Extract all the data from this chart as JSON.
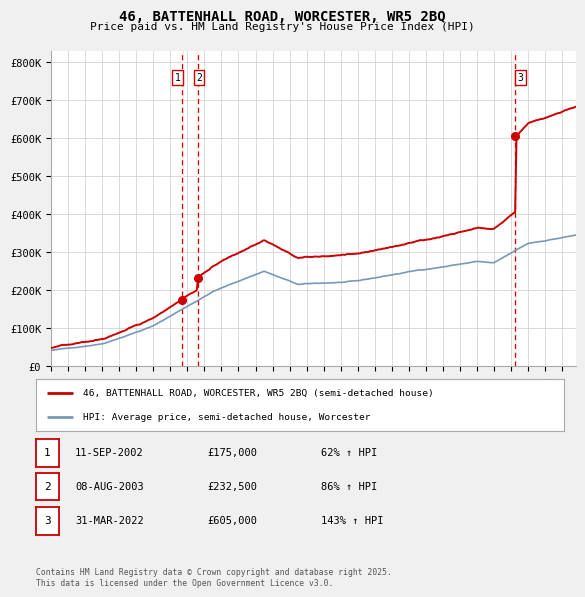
{
  "title": "46, BATTENHALL ROAD, WORCESTER, WR5 2BQ",
  "subtitle": "Price paid vs. HM Land Registry's House Price Index (HPI)",
  "background_color": "#f0f0f0",
  "plot_bg_color": "#ffffff",
  "ylabel_ticks": [
    "£0",
    "£100K",
    "£200K",
    "£300K",
    "£400K",
    "£500K",
    "£600K",
    "£700K",
    "£800K"
  ],
  "ytick_values": [
    0,
    100000,
    200000,
    300000,
    400000,
    500000,
    600000,
    700000,
    800000
  ],
  "ylim": [
    0,
    830000
  ],
  "xlim_start": 1995.0,
  "xlim_end": 2025.8,
  "transaction_year_floats": [
    2002.703,
    2003.603,
    2022.247
  ],
  "transaction_prices": [
    175000,
    232500,
    605000
  ],
  "transaction_labels": [
    "1",
    "2",
    "3"
  ],
  "purchase_vline_color": "#cc0000",
  "purchase_dot_color": "#cc0000",
  "hpi_line_color": "#7799bb",
  "price_line_color": "#cc0000",
  "vline_shade_color": "#ffeeee",
  "legend_price_label": "46, BATTENHALL ROAD, WORCESTER, WR5 2BQ (semi-detached house)",
  "legend_hpi_label": "HPI: Average price, semi-detached house, Worcester",
  "table_data": [
    [
      "1",
      "11-SEP-2002",
      "£175,000",
      "62% ↑ HPI"
    ],
    [
      "2",
      "08-AUG-2003",
      "£232,500",
      "86% ↑ HPI"
    ],
    [
      "3",
      "31-MAR-2022",
      "£605,000",
      "143% ↑ HPI"
    ]
  ],
  "footer": "Contains HM Land Registry data © Crown copyright and database right 2025.\nThis data is licensed under the Open Government Licence v3.0."
}
